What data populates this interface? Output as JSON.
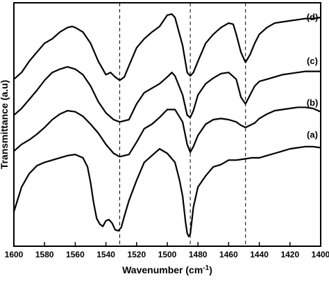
{
  "chart_data": {
    "type": "line",
    "title": "",
    "xlabel": "Wavenumber (cm",
    "xlabel_sup": "-1",
    "xlabel_close": ")",
    "ylabel": "Transmittance (a.u)",
    "xlim": [
      1600,
      1400
    ],
    "x_reversed": true,
    "ylim": [
      0,
      1
    ],
    "grid": false,
    "x_ticks": [
      1600,
      1580,
      1560,
      1540,
      1520,
      1500,
      1480,
      1460,
      1440,
      1420,
      1400
    ],
    "reference_lines_x": [
      1531,
      1485,
      1449
    ],
    "reference_line_style": "dashed",
    "series": [
      {
        "name": "(a)",
        "x": [
          1600,
          1595,
          1590,
          1585,
          1580,
          1575,
          1570,
          1565,
          1560,
          1555,
          1552,
          1550,
          1548,
          1546,
          1544,
          1542,
          1540,
          1538,
          1536,
          1534,
          1532,
          1530,
          1528,
          1525,
          1520,
          1515,
          1510,
          1505,
          1500,
          1495,
          1492,
          1490,
          1488,
          1487,
          1486,
          1485,
          1484,
          1483,
          1480,
          1475,
          1470,
          1465,
          1460,
          1455,
          1450,
          1445,
          1440,
          1435,
          1430,
          1425,
          1420,
          1415,
          1410,
          1405,
          1400
        ],
        "y": [
          0.11,
          0.22,
          0.28,
          0.315,
          0.33,
          0.34,
          0.35,
          0.36,
          0.365,
          0.35,
          0.31,
          0.24,
          0.15,
          0.08,
          0.055,
          0.045,
          0.07,
          0.075,
          0.06,
          0.03,
          0.025,
          0.04,
          0.09,
          0.16,
          0.25,
          0.33,
          0.36,
          0.39,
          0.37,
          0.33,
          0.25,
          0.18,
          0.06,
          0.015,
          0.0,
          0.01,
          0.07,
          0.13,
          0.22,
          0.27,
          0.31,
          0.32,
          0.34,
          0.34,
          0.345,
          0.35,
          0.35,
          0.36,
          0.37,
          0.38,
          0.39,
          0.395,
          0.4,
          0.4,
          0.395
        ]
      },
      {
        "name": "(b)",
        "x": [
          1600,
          1595,
          1590,
          1585,
          1580,
          1575,
          1570,
          1565,
          1560,
          1555,
          1550,
          1545,
          1540,
          1535,
          1531,
          1525,
          1520,
          1515,
          1510,
          1505,
          1500,
          1495,
          1490,
          1487,
          1485,
          1483,
          1480,
          1475,
          1470,
          1465,
          1460,
          1455,
          1452,
          1449,
          1446,
          1443,
          1440,
          1435,
          1430,
          1425,
          1420,
          1415,
          1410,
          1405,
          1400
        ],
        "y": [
          0.38,
          0.41,
          0.43,
          0.455,
          0.485,
          0.52,
          0.545,
          0.56,
          0.555,
          0.535,
          0.5,
          0.46,
          0.41,
          0.37,
          0.355,
          0.365,
          0.42,
          0.48,
          0.5,
          0.53,
          0.565,
          0.565,
          0.51,
          0.41,
          0.375,
          0.4,
          0.45,
          0.5,
          0.52,
          0.525,
          0.52,
          0.51,
          0.495,
          0.485,
          0.495,
          0.505,
          0.525,
          0.545,
          0.56,
          0.565,
          0.57,
          0.575,
          0.575,
          0.57,
          0.555
        ]
      },
      {
        "name": "(c)",
        "x": [
          1600,
          1595,
          1590,
          1585,
          1580,
          1575,
          1570,
          1565,
          1560,
          1555,
          1550,
          1545,
          1540,
          1535,
          1531,
          1525,
          1520,
          1515,
          1510,
          1505,
          1500,
          1497,
          1495,
          1490,
          1487,
          1485,
          1483,
          1480,
          1475,
          1470,
          1465,
          1460,
          1455,
          1452,
          1449,
          1446,
          1443,
          1440,
          1435,
          1430,
          1425,
          1420,
          1415,
          1410,
          1405,
          1400
        ],
        "y": [
          0.54,
          0.57,
          0.61,
          0.65,
          0.695,
          0.73,
          0.745,
          0.755,
          0.745,
          0.72,
          0.67,
          0.6,
          0.55,
          0.52,
          0.51,
          0.52,
          0.59,
          0.64,
          0.66,
          0.68,
          0.71,
          0.73,
          0.715,
          0.63,
          0.54,
          0.53,
          0.56,
          0.63,
          0.68,
          0.705,
          0.725,
          0.73,
          0.7,
          0.62,
          0.59,
          0.63,
          0.67,
          0.69,
          0.7,
          0.71,
          0.72,
          0.725,
          0.73,
          0.735,
          0.735,
          0.735
        ]
      },
      {
        "name": "(d)",
        "x": [
          1600,
          1595,
          1590,
          1585,
          1580,
          1575,
          1570,
          1565,
          1562,
          1560,
          1555,
          1550,
          1545,
          1540,
          1537,
          1534,
          1531,
          1528,
          1525,
          1520,
          1515,
          1510,
          1505,
          1500,
          1497,
          1495,
          1490,
          1487,
          1485,
          1483,
          1480,
          1475,
          1470,
          1465,
          1460,
          1457,
          1455,
          1452,
          1449,
          1446,
          1443,
          1440,
          1435,
          1430,
          1425,
          1420,
          1415,
          1410,
          1405,
          1400
        ],
        "y": [
          0.7,
          0.73,
          0.78,
          0.82,
          0.86,
          0.88,
          0.91,
          0.93,
          0.935,
          0.93,
          0.91,
          0.86,
          0.78,
          0.72,
          0.73,
          0.71,
          0.695,
          0.71,
          0.76,
          0.84,
          0.88,
          0.91,
          0.935,
          0.985,
          0.99,
          0.975,
          0.85,
          0.73,
          0.715,
          0.73,
          0.78,
          0.86,
          0.9,
          0.93,
          0.95,
          0.945,
          0.9,
          0.82,
          0.775,
          0.81,
          0.86,
          0.9,
          0.93,
          0.95,
          0.955,
          0.96,
          0.965,
          0.97,
          0.97,
          0.975
        ]
      }
    ]
  }
}
